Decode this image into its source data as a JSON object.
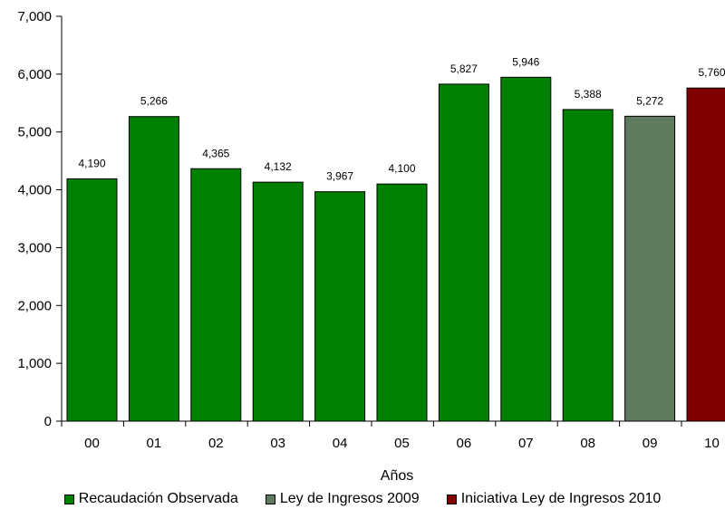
{
  "chart_data": {
    "type": "bar",
    "title": "",
    "xlabel": "Años",
    "ylabel": "",
    "categories": [
      "00",
      "01",
      "02",
      "03",
      "04",
      "05",
      "06",
      "07",
      "08",
      "09",
      "10"
    ],
    "values": [
      4190,
      5266,
      4365,
      4132,
      3967,
      4100,
      5827,
      5946,
      5388,
      5272,
      5760
    ],
    "value_labels": [
      "4,190",
      "5,266",
      "4,365",
      "4,132",
      "3,967",
      "4,100",
      "5,827",
      "5,946",
      "5,388",
      "5,272",
      "5,760"
    ],
    "bar_series": [
      "Recaudación Observada",
      "Recaudación Observada",
      "Recaudación Observada",
      "Recaudación Observada",
      "Recaudación Observada",
      "Recaudación Observada",
      "Recaudación Observada",
      "Recaudación Observada",
      "Recaudación Observada",
      "Ley de Ingresos 2009",
      "Iniciativa Ley de Ingresos 2010"
    ],
    "ylim": [
      0,
      7000
    ],
    "yticks": [
      0,
      1000,
      2000,
      3000,
      4000,
      5000,
      6000,
      7000
    ],
    "ytick_labels": [
      "0",
      "1,000",
      "2,000",
      "3,000",
      "4,000",
      "5,000",
      "6,000",
      "7,000"
    ],
    "grid": false,
    "legend_position": "bottom",
    "legend": [
      {
        "name": "Recaudación Observada",
        "color": "#008000"
      },
      {
        "name": "Ley de Ingresos 2009",
        "color": "#5f7a5f"
      },
      {
        "name": "Iniciativa Ley de Ingresos 2010",
        "color": "#800000"
      }
    ]
  }
}
